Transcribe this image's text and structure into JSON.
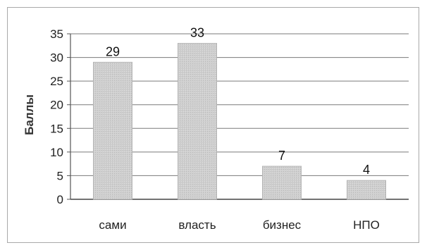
{
  "chart_data": {
    "type": "bar",
    "title": "",
    "xlabel": "",
    "ylabel": "Баллы",
    "categories": [
      "сами",
      "власть",
      "бизнес",
      "НПО"
    ],
    "values": [
      29,
      33,
      7,
      4
    ],
    "data_labels": [
      "29",
      "33",
      "7",
      "4"
    ],
    "ylim": [
      0,
      35
    ],
    "yticks": [
      0,
      5,
      10,
      15,
      20,
      25,
      30,
      35
    ],
    "grid": true,
    "legend": "none",
    "bar_color": "#c8c8c8",
    "bar_edge_color": "#b0b0b0",
    "grid_color": "#7a7a7a"
  }
}
